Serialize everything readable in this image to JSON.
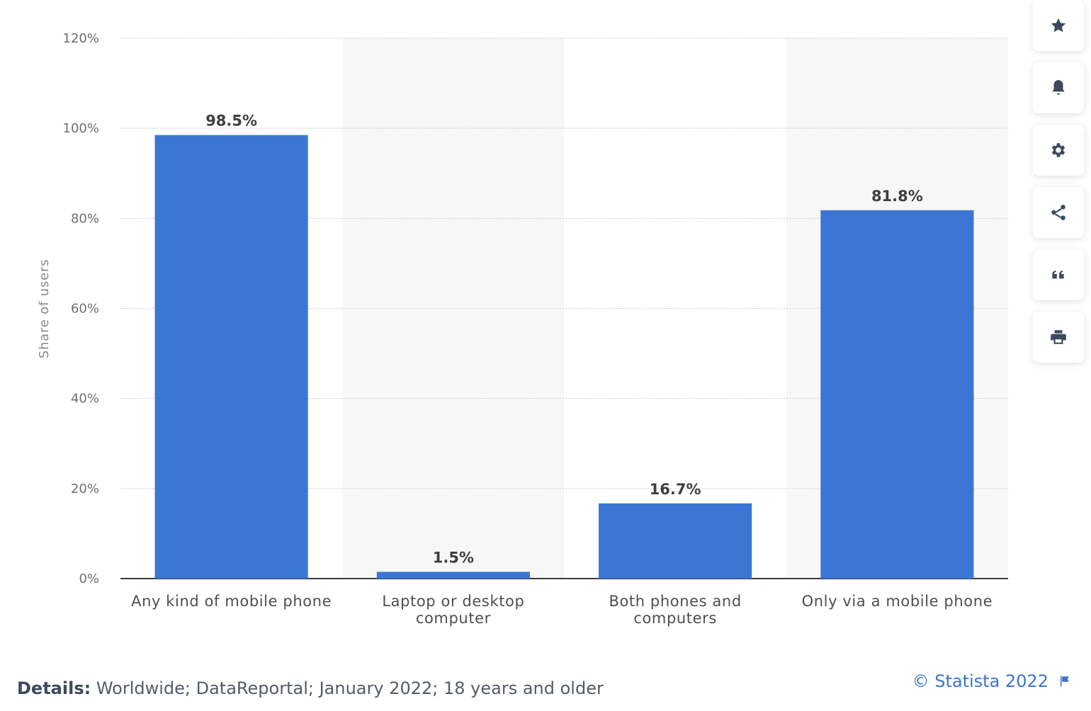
{
  "chart_data": {
    "type": "bar",
    "categories": [
      [
        "Any kind of mobile phone"
      ],
      [
        "Laptop or desktop",
        "computer"
      ],
      [
        "Both phones and",
        "computers"
      ],
      [
        "Only via a mobile phone"
      ]
    ],
    "values": [
      98.5,
      1.5,
      16.7,
      81.8
    ],
    "value_labels": [
      "98.5%",
      "1.5%",
      "16.7%",
      "81.8%"
    ],
    "ylabel": "Share of users",
    "ylim": [
      0,
      120
    ],
    "yticks": [
      "0%",
      "20%",
      "40%",
      "60%",
      "80%",
      "100%",
      "120%"
    ],
    "ytick_values": [
      0,
      20,
      40,
      60,
      80,
      100,
      120
    ],
    "bar_color": "#3b76d5",
    "grid": true,
    "alternating_band_color": "#f7f7f7"
  },
  "toolbar": {
    "icons": [
      "star-icon",
      "bell-icon",
      "gear-icon",
      "share-icon",
      "quote-icon",
      "print-icon"
    ]
  },
  "footer": {
    "details_label": "Details:",
    "details_text": " Worldwide; DataReportal; January 2022; 18 years and older",
    "credit": "© Statista 2022",
    "flag_icon": "flag-icon"
  }
}
